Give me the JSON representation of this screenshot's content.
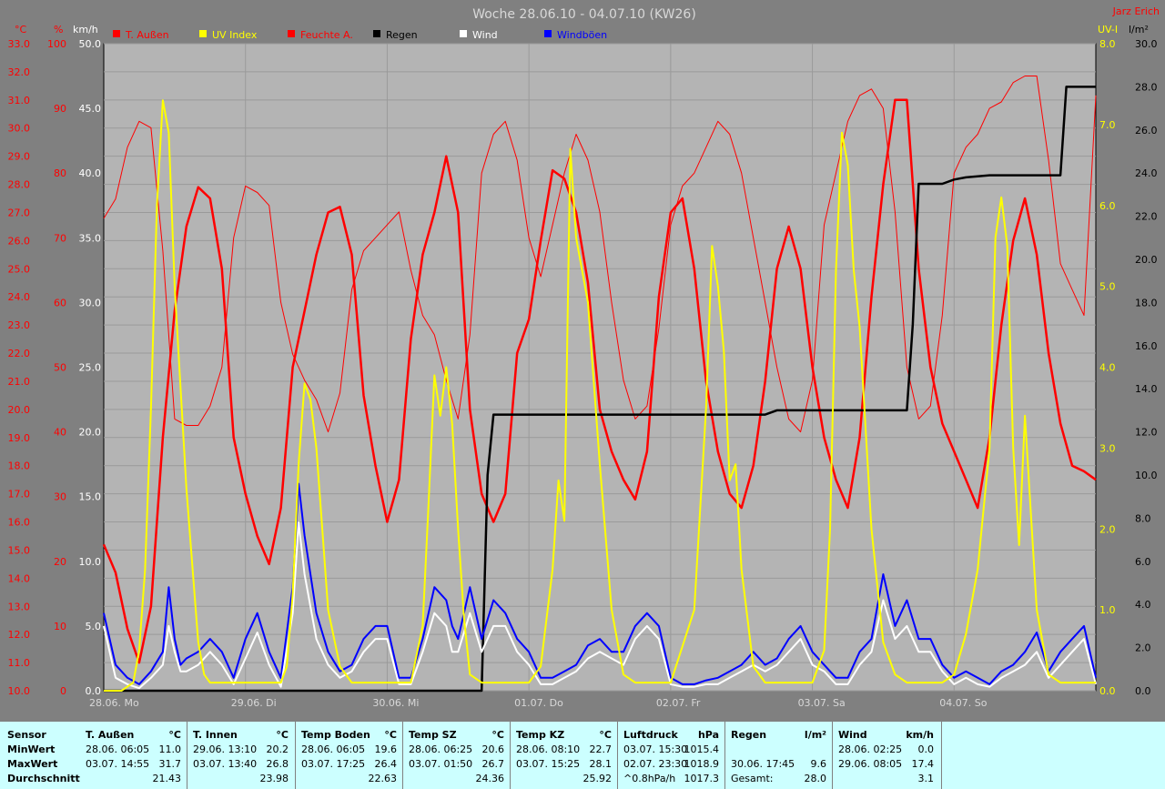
{
  "title": "Woche 28.06.10 - 04.07.10 (KW26)",
  "author": "Jarz Erich",
  "axes": {
    "left1_unit": "°C",
    "left2_unit": "%",
    "left3_unit": "km/h",
    "right1_unit": "UV-I",
    "right2_unit": "l/m²",
    "temp_ticks": [
      "33.0",
      "32.0",
      "31.0",
      "30.0",
      "29.0",
      "28.0",
      "27.0",
      "26.0",
      "25.0",
      "24.0",
      "23.0",
      "22.0",
      "21.0",
      "20.0",
      "19.0",
      "18.0",
      "17.0",
      "16.0",
      "15.0",
      "14.0",
      "13.0",
      "12.0",
      "11.0",
      "10.0"
    ],
    "hum_ticks": [
      "100",
      "90",
      "80",
      "70",
      "60",
      "50",
      "40",
      "30",
      "20",
      "10",
      "0"
    ],
    "wind_ticks": [
      "50.0",
      "45.0",
      "40.0",
      "35.0",
      "30.0",
      "25.0",
      "20.0",
      "15.0",
      "10.0",
      "5.0",
      "0.0"
    ],
    "uv_ticks": [
      "8.0",
      "7.0",
      "6.0",
      "5.0",
      "4.0",
      "3.0",
      "2.0",
      "1.0",
      "0.0"
    ],
    "rain_ticks": [
      "30.0",
      "28.0",
      "26.0",
      "24.0",
      "22.0",
      "20.0",
      "18.0",
      "16.0",
      "14.0",
      "12.0",
      "10.0",
      "8.0",
      "6.0",
      "4.0",
      "2.0",
      "0.0"
    ],
    "day_labels": [
      "28.06. Mo",
      "29.06. Di",
      "30.06. Mi",
      "01.07. Do",
      "02.07. Fr",
      "03.07. Sa",
      "04.07. So"
    ]
  },
  "legend": [
    {
      "label": "T. Außen",
      "color": "#ff0000"
    },
    {
      "label": "UV Index",
      "color": "#ffff00"
    },
    {
      "label": "Feuchte A.",
      "color": "#ff0000"
    },
    {
      "label": "Regen",
      "color": "#000000"
    },
    {
      "label": "Wind",
      "color": "#ffffff"
    },
    {
      "label": "Windböen",
      "color": "#0000ff"
    }
  ],
  "chart_data": {
    "type": "line",
    "title": "Woche 28.06.10 - 04.07.10 (KW26)",
    "x_range_hours": [
      0,
      168
    ],
    "series": [
      {
        "name": "T. Außen",
        "color": "#ff0000",
        "axis": "temp",
        "ylim": [
          10,
          33
        ],
        "x": [
          0,
          2,
          4,
          6,
          8,
          10,
          12,
          14,
          16,
          18,
          20,
          22,
          24,
          26,
          28,
          30,
          32,
          34,
          36,
          38,
          40,
          42,
          44,
          46,
          48,
          50,
          52,
          54,
          56,
          58,
          60,
          62,
          64,
          66,
          68,
          70,
          72,
          74,
          76,
          78,
          80,
          82,
          84,
          86,
          88,
          90,
          92,
          94,
          96,
          98,
          100,
          102,
          104,
          106,
          108,
          110,
          112,
          114,
          116,
          118,
          120,
          122,
          124,
          126,
          128,
          130,
          132,
          134,
          136,
          138,
          140,
          142,
          144,
          146,
          148,
          150,
          152,
          154,
          156,
          158,
          160,
          162,
          164,
          166,
          168
        ],
        "y": [
          15.2,
          14.2,
          12.2,
          11.0,
          13.0,
          19.0,
          23.5,
          26.5,
          27.9,
          27.5,
          25.0,
          19.0,
          17.0,
          15.5,
          14.5,
          16.5,
          21.5,
          23.5,
          25.5,
          27.0,
          27.2,
          25.5,
          20.5,
          18.0,
          16.0,
          17.5,
          22.5,
          25.5,
          27.0,
          29.0,
          27.0,
          20.0,
          17.0,
          16.0,
          17.0,
          22.0,
          23.2,
          26.0,
          28.5,
          28.2,
          27.0,
          24.5,
          20.0,
          18.5,
          17.5,
          16.8,
          18.5,
          24.0,
          27.0,
          27.5,
          25.0,
          21.0,
          18.5,
          17.0,
          16.5,
          18.0,
          21.0,
          25.0,
          26.5,
          25.0,
          21.5,
          19.0,
          17.5,
          16.5,
          19.0,
          24.0,
          28.0,
          31.0,
          31.0,
          25.0,
          21.5,
          19.5,
          18.5,
          17.5,
          16.5,
          19.0,
          23.0,
          26.0,
          27.5,
          25.5,
          22.0,
          19.5,
          18.0,
          17.8,
          17.5
        ]
      },
      {
        "name": "Feuchte A.",
        "color": "#ff0000",
        "axis": "hum",
        "ylim": [
          0,
          100
        ],
        "x": [
          0,
          2,
          4,
          6,
          8,
          10,
          12,
          14,
          16,
          18,
          20,
          22,
          24,
          26,
          28,
          30,
          32,
          34,
          36,
          38,
          40,
          42,
          44,
          46,
          48,
          50,
          52,
          54,
          56,
          58,
          60,
          62,
          64,
          66,
          68,
          70,
          72,
          74,
          76,
          78,
          80,
          82,
          84,
          86,
          88,
          90,
          92,
          94,
          96,
          98,
          100,
          102,
          104,
          106,
          108,
          110,
          112,
          114,
          116,
          118,
          120,
          122,
          124,
          126,
          128,
          130,
          132,
          134,
          136,
          138,
          140,
          142,
          144,
          146,
          148,
          150,
          152,
          154,
          156,
          158,
          160,
          162,
          164,
          166,
          168
        ],
        "y": [
          73,
          76,
          84,
          88,
          87,
          68,
          42,
          41,
          41,
          44,
          50,
          70,
          78,
          77,
          75,
          60,
          52,
          48,
          45,
          40,
          46,
          62,
          68,
          70,
          72,
          74,
          65,
          58,
          55,
          48,
          42,
          55,
          80,
          86,
          88,
          82,
          70,
          64,
          72,
          80,
          86,
          82,
          74,
          60,
          48,
          42,
          44,
          56,
          72,
          78,
          80,
          84,
          88,
          86,
          80,
          70,
          60,
          50,
          42,
          40,
          48,
          72,
          80,
          88,
          92,
          93,
          90,
          74,
          50,
          42,
          44,
          58,
          80,
          84,
          86,
          90,
          91,
          94,
          95,
          95,
          82,
          66,
          62,
          58,
          92
        ]
      },
      {
        "name": "UV Index",
        "color": "#ffff00",
        "axis": "uv",
        "ylim": [
          0,
          8
        ],
        "x": [
          0,
          3,
          5,
          6,
          7,
          8,
          9,
          10,
          11,
          12,
          14,
          16,
          17,
          18,
          20,
          22,
          24,
          26,
          28,
          30,
          31,
          32,
          33,
          34,
          35,
          36,
          37,
          38,
          40,
          42,
          44,
          46,
          48,
          52,
          54,
          55,
          56,
          57,
          58,
          59,
          60,
          61,
          62,
          64,
          66,
          70,
          72,
          74,
          76,
          77,
          78,
          79,
          80,
          82,
          84,
          86,
          88,
          90,
          94,
          96,
          100,
          102,
          103,
          104,
          105,
          106,
          107,
          108,
          110,
          112,
          118,
          120,
          122,
          123,
          124,
          125,
          126,
          127,
          128,
          130,
          132,
          134,
          136,
          142,
          144,
          146,
          148,
          150,
          151,
          152,
          153,
          154,
          155,
          156,
          158,
          160,
          162,
          164,
          168
        ],
        "y": [
          0,
          0,
          0.1,
          0.5,
          1.5,
          3.5,
          6.0,
          7.3,
          6.9,
          5.0,
          2.5,
          0.6,
          0.2,
          0.1,
          0.1,
          0.1,
          0.1,
          0.1,
          0.1,
          0.1,
          0.3,
          1.2,
          2.8,
          3.8,
          3.6,
          3.0,
          2.0,
          1.0,
          0.3,
          0.1,
          0.1,
          0.1,
          0.1,
          0.1,
          0.8,
          2.3,
          3.9,
          3.4,
          4.0,
          3.3,
          2.0,
          0.9,
          0.2,
          0.1,
          0.1,
          0.1,
          0.1,
          0.3,
          1.5,
          2.6,
          2.1,
          6.7,
          5.6,
          4.8,
          2.8,
          1.0,
          0.2,
          0.1,
          0.1,
          0.1,
          1.0,
          3.5,
          5.5,
          5.0,
          4.2,
          2.6,
          2.8,
          1.5,
          0.3,
          0.1,
          0.1,
          0.1,
          0.5,
          2.0,
          5.2,
          6.9,
          6.5,
          5.2,
          4.5,
          2.0,
          0.6,
          0.2,
          0.1,
          0.1,
          0.2,
          0.7,
          1.5,
          3.0,
          5.6,
          6.1,
          5.5,
          3.0,
          1.8,
          3.4,
          1.0,
          0.2,
          0.1,
          0.1,
          0.1
        ]
      },
      {
        "name": "Regen",
        "color": "#000000",
        "axis": "rain",
        "ylim": [
          0,
          30
        ],
        "x": [
          0,
          64,
          65,
          66,
          112,
          114,
          136,
          137,
          138,
          139,
          140,
          141,
          142,
          144,
          146,
          150,
          162,
          163,
          168
        ],
        "y": [
          0,
          0,
          10,
          12.8,
          12.8,
          13.0,
          13.0,
          17.0,
          23.5,
          23.5,
          23.5,
          23.5,
          23.5,
          23.7,
          23.8,
          23.9,
          23.9,
          28.0,
          28.0
        ]
      },
      {
        "name": "Windböen",
        "color": "#0000ff",
        "axis": "wind",
        "ylim": [
          0,
          50
        ],
        "x": [
          0,
          2,
          4,
          6,
          8,
          10,
          11,
          12,
          13,
          14,
          16,
          18,
          20,
          22,
          24,
          26,
          28,
          30,
          32,
          33,
          34,
          36,
          38,
          40,
          42,
          44,
          46,
          48,
          50,
          52,
          54,
          56,
          58,
          59,
          60,
          62,
          64,
          66,
          68,
          70,
          72,
          74,
          76,
          78,
          80,
          82,
          84,
          86,
          88,
          90,
          92,
          94,
          96,
          98,
          100,
          102,
          104,
          106,
          108,
          110,
          112,
          114,
          116,
          118,
          120,
          122,
          124,
          126,
          128,
          130,
          132,
          134,
          136,
          138,
          140,
          142,
          144,
          146,
          148,
          150,
          152,
          154,
          156,
          158,
          160,
          162,
          164,
          166,
          168
        ],
        "y": [
          6,
          2,
          1,
          0.5,
          1.5,
          3,
          8,
          4,
          2,
          2.5,
          3,
          4,
          3,
          1,
          4,
          6,
          3,
          1,
          8,
          16,
          12,
          6,
          3,
          1.5,
          2,
          4,
          5,
          5,
          1,
          1,
          4,
          8,
          7,
          5,
          4,
          8,
          4,
          7,
          6,
          4,
          3,
          1,
          1,
          1.5,
          2,
          3.5,
          4,
          3,
          3,
          5,
          6,
          5,
          1,
          0.5,
          0.5,
          0.8,
          1,
          1.5,
          2,
          3,
          2,
          2.5,
          4,
          5,
          3,
          2,
          1,
          1,
          3,
          4,
          9,
          5,
          7,
          4,
          4,
          2,
          1,
          1.5,
          1,
          0.5,
          1.5,
          2,
          3,
          4.5,
          1.5,
          3,
          4,
          5,
          1
        ]
      },
      {
        "name": "Wind",
        "color": "#ffffff",
        "axis": "wind",
        "ylim": [
          0,
          50
        ],
        "x": [
          0,
          2,
          4,
          6,
          8,
          10,
          11,
          12,
          13,
          14,
          16,
          18,
          20,
          22,
          24,
          26,
          28,
          30,
          32,
          33,
          34,
          36,
          38,
          40,
          42,
          44,
          46,
          48,
          50,
          52,
          54,
          56,
          58,
          59,
          60,
          62,
          64,
          66,
          68,
          70,
          72,
          74,
          76,
          78,
          80,
          82,
          84,
          86,
          88,
          90,
          92,
          94,
          96,
          98,
          100,
          102,
          104,
          106,
          108,
          110,
          112,
          114,
          116,
          118,
          120,
          122,
          124,
          126,
          128,
          130,
          132,
          134,
          136,
          138,
          140,
          142,
          144,
          146,
          148,
          150,
          152,
          154,
          156,
          158,
          160,
          162,
          164,
          166,
          168
        ],
        "y": [
          5,
          1,
          0.5,
          0.2,
          1,
          2,
          5,
          3,
          1.5,
          1.5,
          2,
          3,
          2,
          0.5,
          2.5,
          4.5,
          2,
          0.3,
          6,
          13,
          9,
          4,
          2,
          1,
          1.5,
          3,
          4,
          4,
          0.5,
          0.5,
          3,
          6,
          5,
          3,
          3,
          6,
          3,
          5,
          5,
          3,
          2,
          0.5,
          0.5,
          1,
          1.5,
          2.5,
          3,
          2.5,
          2,
          4,
          5,
          4,
          0.5,
          0.3,
          0.3,
          0.5,
          0.5,
          1,
          1.5,
          2,
          1.5,
          2,
          3,
          4,
          2,
          1.5,
          0.5,
          0.5,
          2,
          3,
          7,
          4,
          5,
          3,
          3,
          1.5,
          0.5,
          1,
          0.5,
          0.3,
          1,
          1.5,
          2,
          3,
          1,
          2,
          3,
          4,
          0.5
        ]
      }
    ]
  },
  "stats": {
    "sensor_label": "Sensor",
    "row_labels": [
      "MinWert",
      "MaxWert",
      "Durchschnitt"
    ],
    "columns": [
      {
        "title": "T. Außen",
        "unit": "°C",
        "min_time": "28.06.  06:05",
        "min_val": "11.0",
        "max_time": "03.07.  14:55",
        "max_val": "31.7",
        "avg": "21.43"
      },
      {
        "title": "T. Innen",
        "unit": "°C",
        "min_time": "29.06.  13:10",
        "min_val": "20.2",
        "max_time": "03.07.  13:40",
        "max_val": "26.8",
        "avg": "23.98"
      },
      {
        "title": "Temp Boden",
        "unit": "°C",
        "min_time": "28.06.  06:05",
        "min_val": "19.6",
        "max_time": "03.07.  17:25",
        "max_val": "26.4",
        "avg": "22.63"
      },
      {
        "title": "Temp SZ",
        "unit": "°C",
        "min_time": "28.06.  06:25",
        "min_val": "20.6",
        "max_time": "03.07.  01:50",
        "max_val": "26.7",
        "avg": "24.36"
      },
      {
        "title": "Temp KZ",
        "unit": "°C",
        "min_time": "28.06.  08:10",
        "min_val": "22.7",
        "max_time": "03.07.  15:25",
        "max_val": "28.1",
        "avg": "25.92"
      },
      {
        "title": "Luftdruck",
        "unit": "hPa",
        "min_time": "03.07.  15:30",
        "min_val": "1015.4",
        "max_time": "02.07.  23:30",
        "max_val": "1018.9",
        "avg_label": "^0.8hPa/h",
        "avg": "1017.3"
      },
      {
        "title": "Regen",
        "unit": "l/m²",
        "min_time": "",
        "min_val": "",
        "max_time": "30.06.  17:45",
        "max_val": "9.6",
        "avg_label": "Gesamt:",
        "avg": "28.0"
      },
      {
        "title": "Wind",
        "unit": "km/h",
        "min_time": "28.06.  02:25",
        "min_val": "0.0",
        "max_time": "29.06.  08:05",
        "max_val": "17.4",
        "avg": "3.1"
      }
    ]
  }
}
